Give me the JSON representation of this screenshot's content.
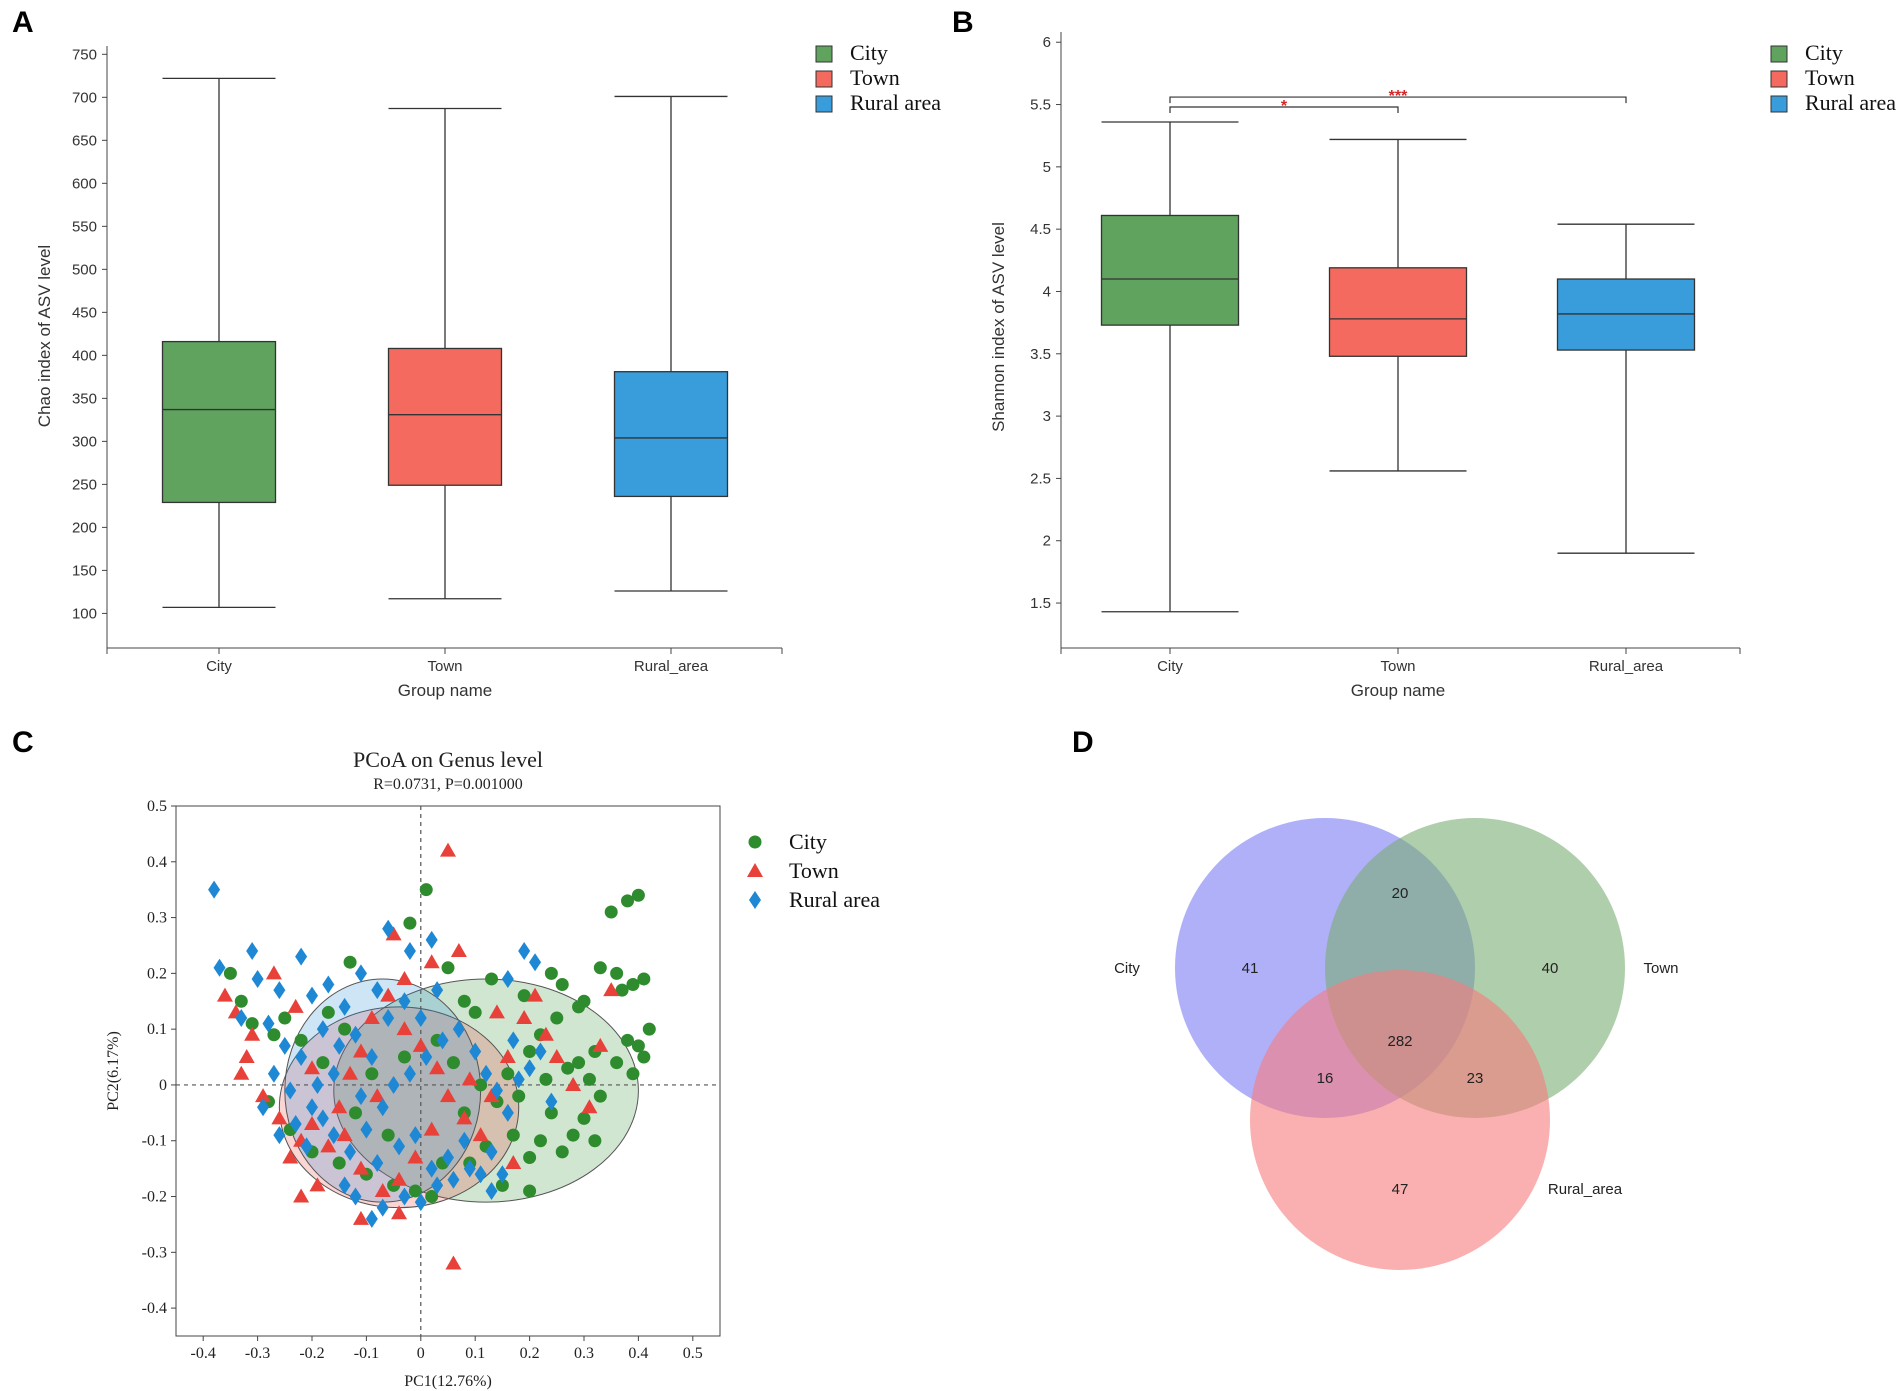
{
  "panels": {
    "a": "A",
    "b": "B",
    "c": "C",
    "d": "D"
  },
  "colors": {
    "city": "#5fa35f",
    "town": "#f46a5e",
    "rural": "#3a9ddb",
    "pcoa_city": "#2e8b2e",
    "pcoa_town": "#e8413a",
    "pcoa_rural": "#1e88d4",
    "sig": "#d62728"
  },
  "chart_data": [
    {
      "type": "boxplot",
      "panel": "A",
      "ylabel": "Chao index of ASV level",
      "xlabel": "Group name",
      "ylim": [
        90,
        755
      ],
      "yticks": [
        100,
        150,
        200,
        250,
        300,
        350,
        400,
        450,
        500,
        550,
        600,
        650,
        700,
        750
      ],
      "categories": [
        "City",
        "Town",
        "Rural_area"
      ],
      "boxes": [
        {
          "name": "City",
          "min": 107,
          "q1": 229,
          "median": 337,
          "q3": 416,
          "max": 722
        },
        {
          "name": "Town",
          "min": 117,
          "q1": 249,
          "median": 331,
          "q3": 408,
          "max": 687
        },
        {
          "name": "Rural_area",
          "min": 126,
          "q1": 236,
          "median": 304,
          "q3": 381,
          "max": 701
        }
      ],
      "legend": [
        "City",
        "Town",
        "Rural area"
      ]
    },
    {
      "type": "boxplot",
      "panel": "B",
      "ylabel": "Shannon index of ASV level",
      "xlabel": "Group name",
      "ylim": [
        1.38,
        6.05
      ],
      "yticks": [
        "1.5",
        "2",
        "2.5",
        "3",
        "3.5",
        "4",
        "4.5",
        "5",
        "5.5",
        "6"
      ],
      "categories": [
        "City",
        "Town",
        "Rural_area"
      ],
      "boxes": [
        {
          "name": "City",
          "min": 1.43,
          "q1": 3.73,
          "median": 4.1,
          "q3": 4.61,
          "max": 5.36
        },
        {
          "name": "Town",
          "min": 2.56,
          "q1": 3.48,
          "median": 3.78,
          "q3": 4.19,
          "max": 5.22
        },
        {
          "name": "Rural_area",
          "min": 1.9,
          "q1": 3.53,
          "median": 3.82,
          "q3": 4.1,
          "max": 4.54
        }
      ],
      "significance": [
        {
          "from": "City",
          "to": "Town",
          "label": "*",
          "y": 5.48
        },
        {
          "from": "City",
          "to": "Rural_area",
          "label": "***",
          "y": 5.56
        }
      ],
      "legend": [
        "City",
        "Town",
        "Rural area"
      ]
    },
    {
      "type": "scatter",
      "panel": "C",
      "title": "PCoA on Genus level",
      "subtitle": "R=0.0731, P=0.001000",
      "xlabel": "PC1(12.76%)",
      "ylabel": "PC2(6.17%)",
      "xlim": [
        -0.45,
        0.55
      ],
      "ylim": [
        -0.45,
        0.5
      ],
      "xticks": [
        "-0.4",
        "-0.3",
        "-0.2",
        "-0.1",
        "0",
        "0.1",
        "0.2",
        "0.3",
        "0.4",
        "0.5"
      ],
      "yticks": [
        "-0.4",
        "-0.3",
        "-0.2",
        "-0.1",
        "0",
        "0.1",
        "0.2",
        "0.3",
        "0.4",
        "0.5"
      ],
      "legend": [
        "City",
        "Town",
        "Rural area"
      ],
      "ellipses": [
        {
          "group": "City",
          "cx": 0.12,
          "cy": -0.01,
          "rx": 0.28,
          "ry": 0.2
        },
        {
          "group": "Town",
          "cx": -0.04,
          "cy": -0.04,
          "rx": 0.22,
          "ry": 0.18
        },
        {
          "group": "Rural area",
          "cx": -0.07,
          "cy": -0.01,
          "rx": 0.18,
          "ry": 0.2
        }
      ],
      "series": [
        {
          "name": "City",
          "points": [
            [
              0.35,
              0.31
            ],
            [
              0.38,
              0.33
            ],
            [
              0.4,
              0.34
            ],
            [
              0.33,
              0.21
            ],
            [
              0.36,
              0.2
            ],
            [
              0.39,
              0.18
            ],
            [
              0.41,
              0.19
            ],
            [
              0.37,
              0.17
            ],
            [
              0.3,
              0.15
            ],
            [
              0.29,
              0.14
            ],
            [
              0.42,
              0.1
            ],
            [
              0.4,
              0.07
            ],
            [
              0.38,
              0.08
            ],
            [
              0.36,
              0.04
            ],
            [
              0.39,
              0.02
            ],
            [
              0.41,
              0.05
            ],
            [
              0.32,
              0.06
            ],
            [
              0.29,
              0.04
            ],
            [
              0.27,
              0.03
            ],
            [
              0.31,
              0.01
            ],
            [
              0.33,
              -0.02
            ],
            [
              0.3,
              -0.06
            ],
            [
              0.28,
              -0.09
            ],
            [
              0.32,
              -0.1
            ],
            [
              0.26,
              -0.12
            ],
            [
              0.22,
              -0.1
            ],
            [
              0.2,
              -0.13
            ],
            [
              0.24,
              -0.05
            ],
            [
              0.25,
              0.12
            ],
            [
              0.22,
              0.09
            ],
            [
              0.19,
              0.16
            ],
            [
              0.26,
              0.18
            ],
            [
              0.24,
              0.2
            ],
            [
              0.2,
              0.06
            ],
            [
              0.16,
              0.02
            ],
            [
              0.14,
              -0.03
            ],
            [
              0.17,
              -0.09
            ],
            [
              0.12,
              -0.11
            ],
            [
              0.15,
              -0.18
            ],
            [
              0.2,
              -0.19
            ],
            [
              0.13,
              0.19
            ],
            [
              0.1,
              0.13
            ],
            [
              0.08,
              0.15
            ],
            [
              0.05,
              0.21
            ],
            [
              0.03,
              0.08
            ],
            [
              0.01,
              0.35
            ],
            [
              -0.02,
              0.29
            ],
            [
              0.06,
              0.04
            ],
            [
              0.08,
              -0.05
            ],
            [
              0.04,
              -0.14
            ],
            [
              0.02,
              -0.2
            ],
            [
              -0.01,
              -0.19
            ],
            [
              -0.05,
              -0.18
            ],
            [
              -0.1,
              -0.16
            ],
            [
              -0.15,
              -0.14
            ],
            [
              -0.12,
              -0.05
            ],
            [
              -0.18,
              0.04
            ],
            [
              -0.22,
              0.08
            ],
            [
              -0.25,
              0.12
            ],
            [
              -0.27,
              0.09
            ],
            [
              -0.31,
              0.11
            ],
            [
              -0.33,
              0.15
            ],
            [
              -0.35,
              0.2
            ],
            [
              -0.28,
              -0.03
            ],
            [
              -0.24,
              -0.08
            ],
            [
              -0.2,
              -0.12
            ],
            [
              -0.14,
              0.1
            ],
            [
              -0.09,
              0.02
            ],
            [
              -0.06,
              -0.09
            ],
            [
              -0.03,
              0.05
            ],
            [
              0.11,
              0.0
            ],
            [
              0.18,
              -0.02
            ],
            [
              0.23,
              0.01
            ],
            [
              0.09,
              -0.14
            ],
            [
              -0.17,
              0.13
            ],
            [
              -0.13,
              0.22
            ]
          ]
        },
        {
          "name": "Town",
          "points": [
            [
              0.05,
              0.42
            ],
            [
              -0.05,
              0.27
            ],
            [
              0.07,
              0.24
            ],
            [
              0.02,
              0.22
            ],
            [
              -0.03,
              0.19
            ],
            [
              -0.36,
              0.16
            ],
            [
              -0.34,
              0.13
            ],
            [
              -0.31,
              0.09
            ],
            [
              -0.32,
              0.05
            ],
            [
              -0.33,
              0.02
            ],
            [
              -0.29,
              -0.02
            ],
            [
              -0.26,
              -0.06
            ],
            [
              -0.22,
              -0.1
            ],
            [
              -0.24,
              -0.13
            ],
            [
              -0.2,
              -0.07
            ],
            [
              -0.17,
              -0.11
            ],
            [
              -0.15,
              -0.04
            ],
            [
              -0.13,
              0.02
            ],
            [
              -0.11,
              0.06
            ],
            [
              -0.09,
              0.12
            ],
            [
              -0.06,
              0.16
            ],
            [
              -0.03,
              0.1
            ],
            [
              0.0,
              0.07
            ],
            [
              0.03,
              0.03
            ],
            [
              0.05,
              -0.02
            ],
            [
              0.08,
              -0.06
            ],
            [
              0.11,
              -0.09
            ],
            [
              0.13,
              -0.02
            ],
            [
              0.16,
              0.05
            ],
            [
              0.19,
              0.12
            ],
            [
              0.21,
              0.16
            ],
            [
              0.23,
              0.09
            ],
            [
              0.25,
              0.05
            ],
            [
              0.28,
              0.0
            ],
            [
              0.31,
              -0.04
            ],
            [
              0.33,
              0.07
            ],
            [
              0.35,
              0.17
            ],
            [
              -0.11,
              -0.15
            ],
            [
              -0.07,
              -0.19
            ],
            [
              -0.04,
              -0.17
            ],
            [
              -0.01,
              -0.13
            ],
            [
              0.02,
              -0.08
            ],
            [
              -0.19,
              -0.18
            ],
            [
              -0.22,
              -0.2
            ],
            [
              -0.27,
              0.2
            ],
            [
              -0.23,
              0.14
            ],
            [
              0.06,
              -0.32
            ],
            [
              -0.11,
              -0.24
            ],
            [
              -0.04,
              -0.23
            ],
            [
              0.09,
              0.01
            ],
            [
              0.14,
              0.13
            ],
            [
              0.17,
              -0.14
            ],
            [
              -0.14,
              -0.09
            ],
            [
              -0.08,
              -0.02
            ],
            [
              -0.2,
              0.03
            ]
          ]
        },
        {
          "name": "Rural area",
          "points": [
            [
              -0.38,
              0.35
            ],
            [
              -0.37,
              0.21
            ],
            [
              -0.31,
              0.24
            ],
            [
              -0.26,
              0.17
            ],
            [
              -0.22,
              0.23
            ],
            [
              -0.2,
              0.16
            ],
            [
              -0.17,
              0.18
            ],
            [
              -0.14,
              0.14
            ],
            [
              -0.11,
              0.2
            ],
            [
              -0.08,
              0.17
            ],
            [
              -0.02,
              0.24
            ],
            [
              -0.06,
              0.28
            ],
            [
              0.02,
              0.26
            ],
            [
              0.19,
              0.24
            ],
            [
              0.21,
              0.22
            ],
            [
              0.16,
              0.19
            ],
            [
              -0.3,
              0.19
            ],
            [
              -0.33,
              0.12
            ],
            [
              -0.28,
              0.11
            ],
            [
              -0.25,
              0.07
            ],
            [
              -0.22,
              0.05
            ],
            [
              -0.27,
              0.02
            ],
            [
              -0.24,
              -0.01
            ],
            [
              -0.2,
              -0.04
            ],
            [
              -0.23,
              -0.07
            ],
            [
              -0.21,
              -0.11
            ],
            [
              -0.18,
              -0.06
            ],
            [
              -0.16,
              -0.09
            ],
            [
              -0.13,
              -0.12
            ],
            [
              -0.1,
              -0.08
            ],
            [
              -0.07,
              -0.04
            ],
            [
              -0.05,
              0.0
            ],
            [
              -0.02,
              0.02
            ],
            [
              0.01,
              0.05
            ],
            [
              0.04,
              0.08
            ],
            [
              0.07,
              0.1
            ],
            [
              0.1,
              0.06
            ],
            [
              0.12,
              0.02
            ],
            [
              0.14,
              -0.01
            ],
            [
              0.16,
              -0.05
            ],
            [
              0.18,
              0.01
            ],
            [
              0.2,
              0.03
            ],
            [
              0.22,
              0.06
            ],
            [
              0.13,
              -0.12
            ],
            [
              0.09,
              -0.15
            ],
            [
              0.06,
              -0.17
            ],
            [
              0.03,
              -0.18
            ],
            [
              0.0,
              -0.21
            ],
            [
              -0.03,
              -0.2
            ],
            [
              -0.07,
              -0.22
            ],
            [
              -0.09,
              -0.24
            ],
            [
              -0.12,
              -0.2
            ],
            [
              -0.14,
              -0.18
            ],
            [
              -0.08,
              -0.14
            ],
            [
              -0.04,
              -0.11
            ],
            [
              -0.01,
              -0.09
            ],
            [
              0.02,
              -0.15
            ],
            [
              0.05,
              -0.13
            ],
            [
              0.08,
              -0.1
            ],
            [
              0.11,
              -0.16
            ],
            [
              0.13,
              -0.19
            ],
            [
              0.15,
              -0.16
            ],
            [
              -0.18,
              0.1
            ],
            [
              -0.15,
              0.07
            ],
            [
              -0.12,
              0.09
            ],
            [
              -0.09,
              0.05
            ],
            [
              -0.06,
              0.12
            ],
            [
              -0.03,
              0.15
            ],
            [
              0.0,
              0.12
            ],
            [
              0.03,
              0.17
            ],
            [
              -0.29,
              -0.04
            ],
            [
              -0.26,
              -0.09
            ],
            [
              -0.19,
              0.0
            ],
            [
              -0.16,
              0.02
            ],
            [
              -0.11,
              -0.02
            ],
            [
              0.17,
              0.08
            ],
            [
              0.24,
              -0.03
            ]
          ]
        }
      ]
    },
    {
      "type": "venn",
      "panel": "D",
      "sets": [
        "City",
        "Town",
        "Rural_area"
      ],
      "regions": [
        {
          "region": "City only",
          "value": "41"
        },
        {
          "region": "Town only",
          "value": "40"
        },
        {
          "region": "Rural_area only",
          "value": "47"
        },
        {
          "region": "City & Town",
          "value": "20"
        },
        {
          "region": "City & Rural_area",
          "value": "16"
        },
        {
          "region": "Town & Rural_area",
          "value": "23"
        },
        {
          "region": "All three",
          "value": "282"
        }
      ]
    }
  ]
}
